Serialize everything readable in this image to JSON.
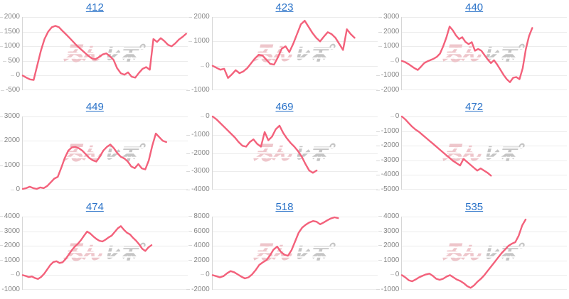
{
  "colors": {
    "line": "#f3617b",
    "grid_light": "#ececec",
    "grid_zero": "#c9c9c9",
    "grid_edge": "#e2e2e2",
    "axis": "#d6d6d6",
    "tick_label": "#878787",
    "link": "#2a72c8",
    "watermark_pink": "#eec6cb",
    "watermark_gray": "#c5c5c5"
  },
  "watermark_text": "みんレポ",
  "chart_data": [
    {
      "type": "line",
      "title": "412",
      "ylim": [
        -500,
        2000
      ],
      "yticks": [
        2000,
        1500,
        1000,
        500,
        0,
        -500
      ],
      "x_end": 0.99,
      "grid": true,
      "legend": "none",
      "values": [
        0,
        -70,
        -130,
        -150,
        350,
        850,
        1250,
        1500,
        1650,
        1700,
        1650,
        1520,
        1400,
        1270,
        1140,
        1010,
        900,
        790,
        680,
        590,
        560,
        630,
        720,
        760,
        660,
        540,
        250,
        80,
        30,
        110,
        -40,
        -70,
        90,
        230,
        290,
        200,
        1250,
        1150,
        1280,
        1180,
        1050,
        1000,
        1100,
        1230,
        1320,
        1430
      ]
    },
    {
      "type": "line",
      "title": "423",
      "ylim": [
        -1000,
        2000
      ],
      "yticks": [
        2000,
        1000,
        0,
        -1000
      ],
      "x_end": 0.86,
      "grid": true,
      "legend": "none",
      "values": [
        0,
        -80,
        -160,
        -120,
        -500,
        -350,
        -180,
        -300,
        -230,
        -100,
        100,
        300,
        450,
        420,
        250,
        80,
        50,
        350,
        700,
        800,
        560,
        900,
        1300,
        1700,
        1850,
        1600,
        1350,
        1150,
        1000,
        1200,
        1380,
        1300,
        1150,
        900,
        650,
        1500,
        1300,
        1150
      ]
    },
    {
      "type": "line",
      "title": "440",
      "ylim": [
        -2000,
        3000
      ],
      "yticks": [
        3000,
        2000,
        1000,
        0,
        -1000,
        -2000
      ],
      "x_end": 0.79,
      "grid": true,
      "legend": "none",
      "values": [
        0,
        -80,
        -200,
        -350,
        -500,
        -620,
        -400,
        -150,
        -30,
        60,
        150,
        280,
        500,
        1000,
        1600,
        2350,
        2100,
        1750,
        1500,
        1620,
        1300,
        1150,
        1280,
        700,
        820,
        700,
        400,
        100,
        -150,
        50,
        -250,
        -600,
        -950,
        -1250,
        -1450,
        -1150,
        -1100,
        -1250,
        -500,
        800,
        1700,
        2250
      ]
    },
    {
      "type": "line",
      "title": "449",
      "ylim": [
        0,
        3000
      ],
      "yticks": [
        3000,
        2000,
        1000,
        0
      ],
      "x_end": 0.87,
      "grid": true,
      "legend": "none",
      "values": [
        30,
        60,
        120,
        60,
        30,
        90,
        60,
        150,
        300,
        450,
        520,
        900,
        1300,
        1600,
        1730,
        1750,
        1700,
        1600,
        1450,
        1300,
        1200,
        1150,
        1350,
        1600,
        1750,
        1850,
        1700,
        1500,
        1350,
        1280,
        1150,
        950,
        880,
        1050,
        870,
        830,
        1200,
        1800,
        2300,
        2150,
        2000,
        1950
      ]
    },
    {
      "type": "line",
      "title": "469",
      "ylim": [
        -4000,
        0
      ],
      "yticks": [
        0,
        -1000,
        -2000,
        -3000,
        -4000
      ],
      "x_end": 0.63,
      "grid": true,
      "legend": "none",
      "values": [
        0,
        -150,
        -350,
        -550,
        -750,
        -950,
        -1150,
        -1400,
        -1600,
        -1650,
        -1400,
        -1250,
        -1500,
        -1650,
        -850,
        -1300,
        -1100,
        -700,
        -500,
        -900,
        -1200,
        -1450,
        -1650,
        -1900,
        -2200,
        -2600,
        -2950,
        -3080,
        -2950
      ]
    },
    {
      "type": "line",
      "title": "472",
      "ylim": [
        -5000,
        0
      ],
      "yticks": [
        0,
        -1000,
        -2000,
        -3000,
        -4000,
        -5000
      ],
      "x_end": 0.54,
      "grid": true,
      "legend": "none",
      "values": [
        0,
        -200,
        -450,
        -700,
        -900,
        -1050,
        -1250,
        -1450,
        -1650,
        -1850,
        -2050,
        -2250,
        -2450,
        -2650,
        -2850,
        -3050,
        -3200,
        -3350,
        -2900,
        -3100,
        -3300,
        -3500,
        -3700,
        -3550,
        -3700,
        -3850,
        -4050
      ]
    },
    {
      "type": "line",
      "title": "474",
      "ylim": [
        -1000,
        4000
      ],
      "yticks": [
        4000,
        3000,
        2000,
        1000,
        0,
        -1000
      ],
      "x_end": 0.78,
      "grid": true,
      "legend": "none",
      "values": [
        0,
        -60,
        -130,
        -90,
        -200,
        -260,
        -120,
        100,
        400,
        700,
        900,
        950,
        830,
        880,
        1100,
        1400,
        1700,
        1950,
        2150,
        2400,
        2700,
        2980,
        2850,
        2650,
        2480,
        2350,
        2300,
        2420,
        2580,
        2700,
        2950,
        3200,
        3350,
        3100,
        2900,
        2780,
        2550,
        2350,
        2100,
        1800,
        1650,
        1900,
        2050
      ]
    },
    {
      "type": "line",
      "title": "518",
      "ylim": [
        -2000,
        8000
      ],
      "yticks": [
        8000,
        6000,
        4000,
        2000,
        0,
        -2000
      ],
      "x_end": 0.76,
      "grid": true,
      "legend": "none",
      "values": [
        0,
        -150,
        -300,
        -150,
        250,
        550,
        400,
        100,
        -200,
        -450,
        -300,
        100,
        700,
        1400,
        1750,
        2050,
        2700,
        3500,
        3900,
        3200,
        2800,
        2650,
        3400,
        4600,
        5800,
        6500,
        6900,
        7200,
        7400,
        7300,
        6950,
        7200,
        7500,
        7750,
        7900,
        7800
      ]
    },
    {
      "type": "line",
      "title": "535",
      "ylim": [
        -1000,
        4000
      ],
      "yticks": [
        4000,
        3000,
        2000,
        1000,
        0,
        -1000
      ],
      "x_end": 0.75,
      "grid": true,
      "legend": "none",
      "values": [
        0,
        -150,
        -350,
        -420,
        -300,
        -150,
        -50,
        50,
        100,
        -50,
        -250,
        -320,
        -250,
        -100,
        0,
        -150,
        -300,
        -400,
        -550,
        -750,
        -870,
        -700,
        -450,
        -250,
        0,
        300,
        600,
        900,
        1200,
        1500,
        1750,
        2000,
        2150,
        2250,
        2700,
        3400,
        3800
      ]
    }
  ]
}
